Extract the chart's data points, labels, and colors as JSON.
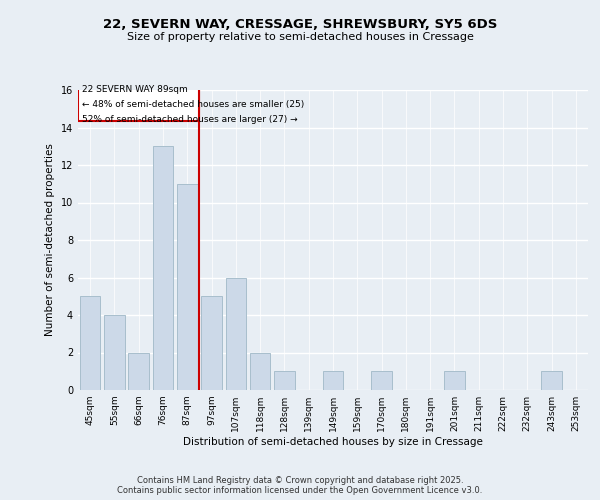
{
  "title1": "22, SEVERN WAY, CRESSAGE, SHREWSBURY, SY5 6DS",
  "title2": "Size of property relative to semi-detached houses in Cressage",
  "xlabel": "Distribution of semi-detached houses by size in Cressage",
  "ylabel": "Number of semi-detached properties",
  "categories": [
    "45sqm",
    "55sqm",
    "66sqm",
    "76sqm",
    "87sqm",
    "97sqm",
    "107sqm",
    "118sqm",
    "128sqm",
    "139sqm",
    "149sqm",
    "159sqm",
    "170sqm",
    "180sqm",
    "191sqm",
    "201sqm",
    "211sqm",
    "222sqm",
    "232sqm",
    "243sqm",
    "253sqm"
  ],
  "values": [
    5,
    4,
    2,
    13,
    11,
    5,
    6,
    2,
    1,
    0,
    1,
    0,
    1,
    0,
    0,
    1,
    0,
    0,
    0,
    1,
    0
  ],
  "bar_color": "#ccd9e8",
  "bar_edge_color": "#a8becc",
  "property_line_idx": 4,
  "property_label": "22 SEVERN WAY 89sqm",
  "annotation_line1": "← 48% of semi-detached houses are smaller (25)",
  "annotation_line2": "52% of semi-detached houses are larger (27) →",
  "box_color": "#cc0000",
  "ylim": [
    0,
    16
  ],
  "yticks": [
    0,
    2,
    4,
    6,
    8,
    10,
    12,
    14,
    16
  ],
  "footer_line1": "Contains HM Land Registry data © Crown copyright and database right 2025.",
  "footer_line2": "Contains public sector information licensed under the Open Government Licence v3.0.",
  "background_color": "#e8eef4"
}
